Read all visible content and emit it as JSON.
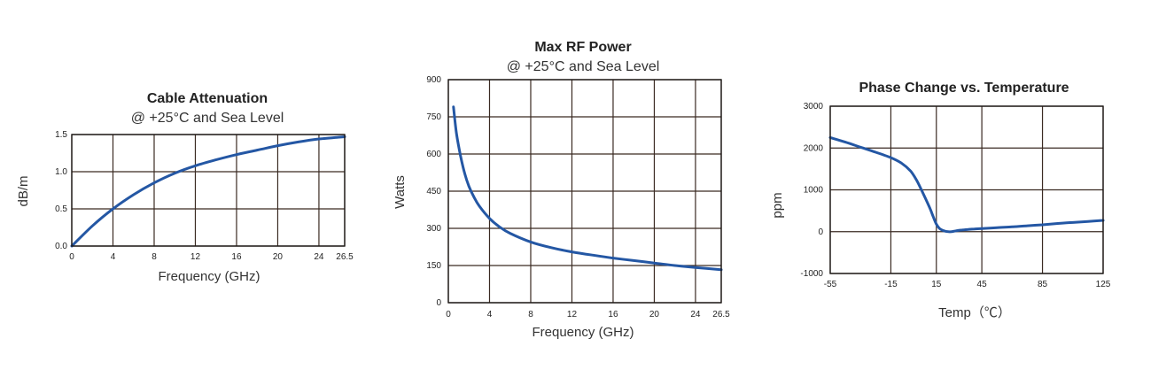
{
  "colors": {
    "curve": "#2457a4"
  },
  "chart_data": [
    {
      "type": "line",
      "title": "Cable Attenuation",
      "subtitle": "@ +25°C and Sea Level",
      "xlabel": "Frequency (GHz)",
      "ylabel": "dB/m",
      "xlim": [
        0,
        26.5
      ],
      "ylim": [
        0,
        1.5
      ],
      "xticks": [
        0,
        4,
        8,
        12,
        16,
        20,
        24,
        26.5
      ],
      "xtick_labels": [
        "0",
        "4",
        "8",
        "12",
        "16",
        "20",
        "24",
        "26.5"
      ],
      "yticks": [
        0,
        0.5,
        1.0,
        1.5
      ],
      "ytick_labels": [
        "0.0",
        "0.5",
        "1.0",
        "1.5"
      ],
      "grid": true,
      "series": [
        {
          "x": [
            0,
            2,
            4,
            6,
            8,
            10,
            12,
            14,
            16,
            18,
            20,
            22,
            24,
            26.5
          ],
          "y": [
            0,
            0.27,
            0.5,
            0.69,
            0.85,
            0.98,
            1.08,
            1.16,
            1.23,
            1.29,
            1.35,
            1.4,
            1.44,
            1.47
          ]
        }
      ]
    },
    {
      "type": "line",
      "title": "Max RF Power",
      "subtitle": "@ +25°C and Sea Level",
      "xlabel": "Frequency (GHz)",
      "ylabel": "Watts",
      "xlim": [
        0,
        26.5
      ],
      "ylim": [
        0,
        900
      ],
      "xticks": [
        0,
        4,
        8,
        12,
        16,
        20,
        24,
        26.5
      ],
      "xtick_labels": [
        "0",
        "4",
        "8",
        "12",
        "16",
        "20",
        "24",
        "26.5"
      ],
      "yticks": [
        0,
        150,
        300,
        450,
        600,
        750,
        900
      ],
      "ytick_labels": [
        "0",
        "150",
        "300",
        "450",
        "600",
        "750",
        "900"
      ],
      "grid": true,
      "series": [
        {
          "x": [
            0.5,
            0.8,
            1.2,
            1.6,
            2,
            2.5,
            3,
            4,
            5,
            6,
            8,
            10,
            12,
            14,
            16,
            18,
            20,
            22,
            24,
            26.5
          ],
          "y": [
            790,
            680,
            590,
            520,
            470,
            425,
            390,
            340,
            305,
            280,
            245,
            222,
            205,
            192,
            180,
            170,
            160,
            150,
            142,
            133
          ]
        }
      ]
    },
    {
      "type": "line",
      "title": "Phase Change vs. Temperature",
      "subtitle": "",
      "xlabel": "Temp（℃）",
      "ylabel": "ppm",
      "xlim": [
        -55,
        125
      ],
      "ylim": [
        -1000,
        3000
      ],
      "xticks": [
        -55,
        -15,
        15,
        45,
        85,
        125
      ],
      "xtick_labels": [
        "-55",
        "-15",
        "15",
        "45",
        "85",
        "125"
      ],
      "yticks": [
        -1000,
        0,
        1000,
        2000,
        3000
      ],
      "ytick_labels": [
        "-1000",
        "0",
        "1000",
        "2000",
        "3000"
      ],
      "grid": true,
      "series": [
        {
          "x": [
            -55,
            -45,
            -35,
            -25,
            -15,
            -8,
            -2,
            2,
            5,
            8,
            11,
            13,
            15,
            17,
            19,
            21,
            23,
            25,
            28,
            32,
            36,
            40,
            45,
            55,
            65,
            75,
            85,
            95,
            105,
            115,
            125
          ],
          "y": [
            2250,
            2140,
            2020,
            1900,
            1770,
            1640,
            1450,
            1230,
            1010,
            780,
            540,
            350,
            180,
            80,
            35,
            10,
            0,
            0,
            20,
            40,
            55,
            65,
            75,
            95,
            115,
            140,
            165,
            195,
            220,
            245,
            270
          ]
        }
      ]
    }
  ]
}
